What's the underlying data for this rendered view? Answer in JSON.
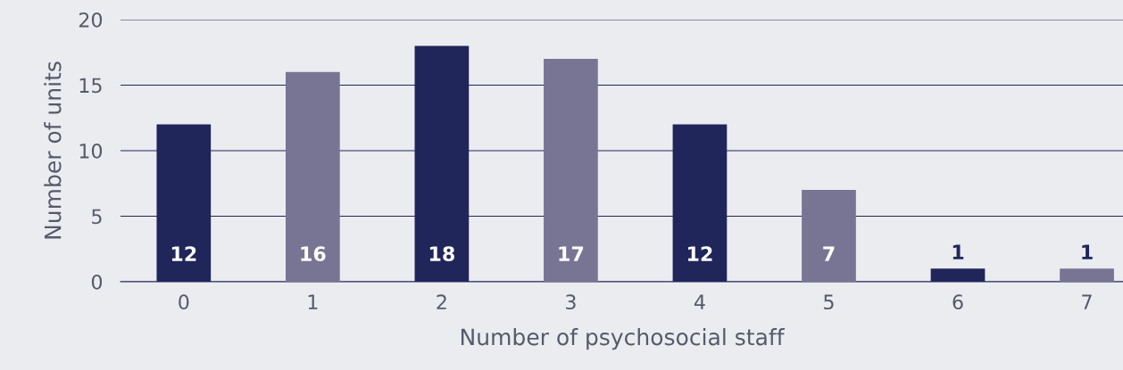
{
  "chart_data": {
    "type": "bar",
    "xlabel": "Number of psychosocial staff",
    "ylabel": "Number of units",
    "categories": [
      "0",
      "1",
      "2",
      "3",
      "4",
      "5",
      "6",
      "7"
    ],
    "values": [
      12,
      16,
      18,
      17,
      12,
      7,
      1,
      1
    ],
    "colors": [
      "#20265a",
      "#787494",
      "#20265a",
      "#787494",
      "#20265a",
      "#787494",
      "#20265a",
      "#787494"
    ],
    "ylim": [
      0,
      20
    ],
    "yticks": [
      0,
      5,
      10,
      15,
      20
    ],
    "grid": "y",
    "data_labels": true,
    "legend": false
  }
}
